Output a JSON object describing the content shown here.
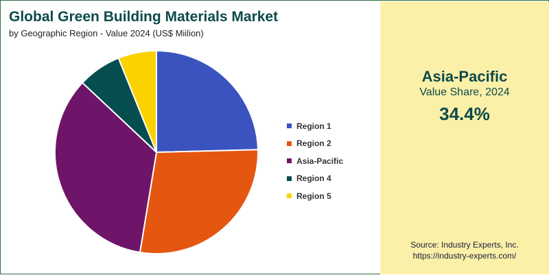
{
  "header": {
    "title": "Global Green Building Materials Market",
    "subtitle": "by Geographic Region - Value 2024 (US$ Miilion)"
  },
  "highlight": {
    "region": "Asia-Pacific",
    "metric": "Value Share, 2024",
    "value": "34.4%"
  },
  "source": {
    "line1": "Source: Industry Experts, Inc.",
    "line2": "https://industry-experts.com/"
  },
  "colors": {
    "highlight_panel": "#fbf0a8",
    "title_text": "#0d4a4a",
    "border": "#2f6b45"
  },
  "chart_data": {
    "type": "pie",
    "title": "Global Green Building Materials Market",
    "subtitle": "by Geographic Region - Value 2024 (US$ Miilion)",
    "legend_position": "right",
    "start_angle_deg": 0,
    "direction": "clockwise",
    "slices": [
      {
        "label": "Region 1",
        "percent": 24.6,
        "color": "#3a53bf"
      },
      {
        "label": "Region 2",
        "percent": 28.0,
        "color": "#e55611"
      },
      {
        "label": "Asia-Pacific",
        "percent": 34.4,
        "color": "#6e1469"
      },
      {
        "label": "Region 4",
        "percent": 6.9,
        "color": "#054d4e"
      },
      {
        "label": "Region 5",
        "percent": 6.1,
        "color": "#fbd100"
      }
    ]
  }
}
